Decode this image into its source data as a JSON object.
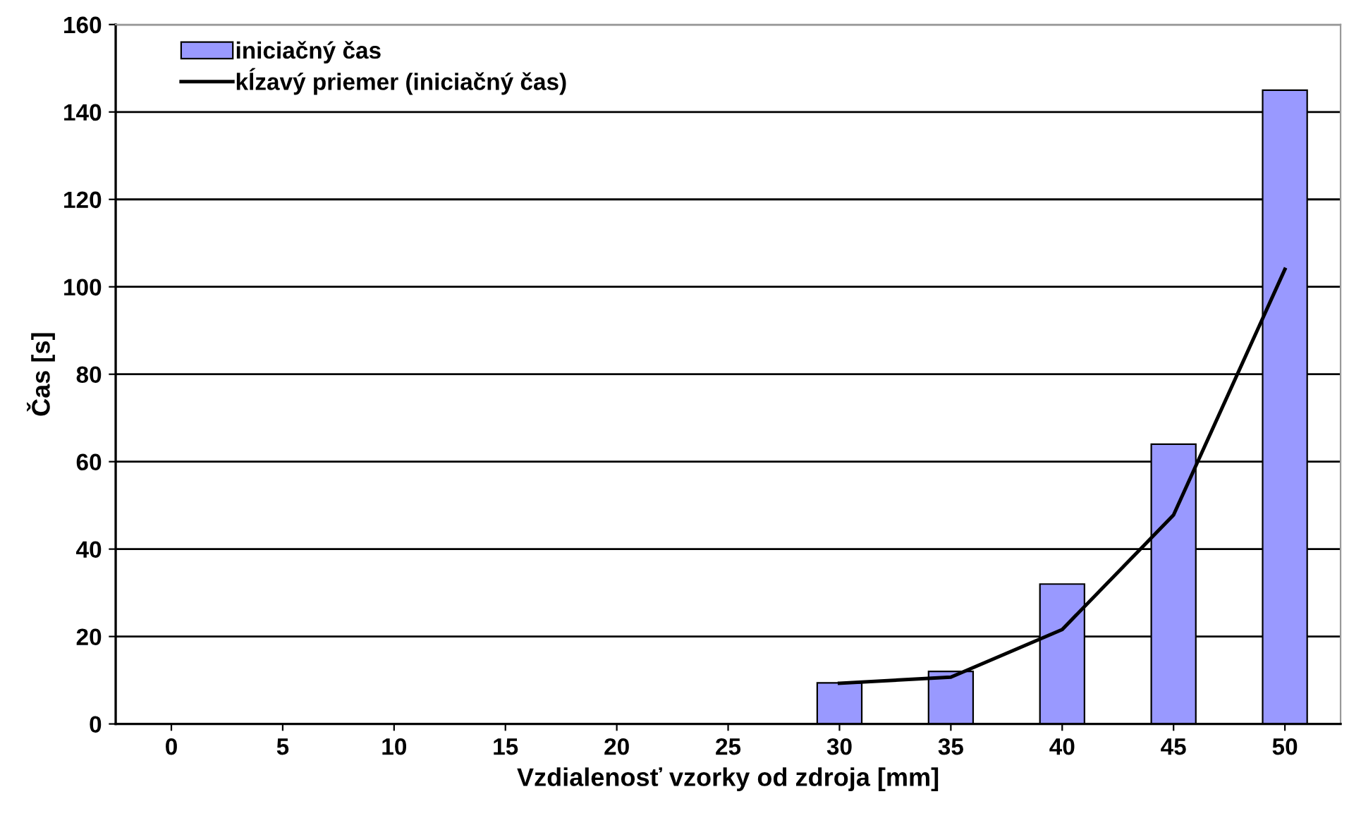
{
  "chart_data": {
    "type": "bar",
    "xlabel": "Vzdialenosť vzorky od zdroja [mm]",
    "ylabel": "Čas [s]",
    "categories": [
      "0",
      "5",
      "10",
      "15",
      "20",
      "25",
      "30",
      "35",
      "40",
      "45",
      "50"
    ],
    "series": [
      {
        "name": "iniciačný čas",
        "color": "#9999ff",
        "values": [
          null,
          null,
          null,
          null,
          null,
          null,
          9.4,
          12,
          32,
          64,
          145
        ]
      },
      {
        "name": "kĺzavý priemer (iniciačný čas)",
        "type": "line",
        "color": "#000000",
        "values": [
          null,
          null,
          null,
          null,
          null,
          null,
          9.3,
          10.7,
          21.6,
          47.8,
          104
        ]
      }
    ],
    "ylim": [
      0,
      160
    ],
    "yticks": [
      0,
      20,
      40,
      60,
      80,
      100,
      120,
      140,
      160
    ],
    "grid": "y",
    "legend": "top left"
  }
}
